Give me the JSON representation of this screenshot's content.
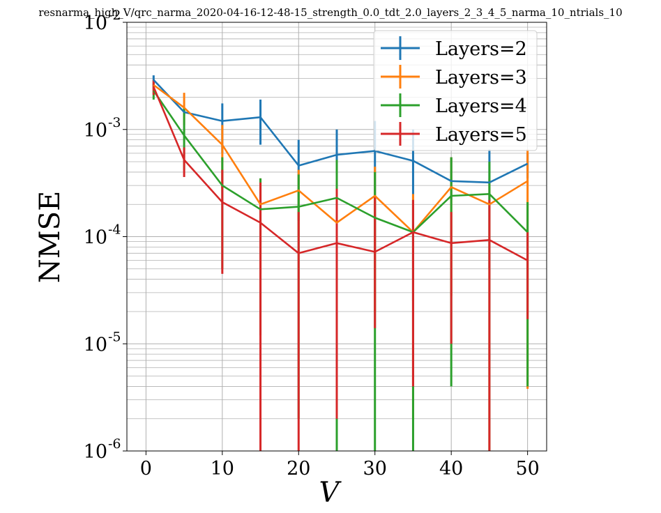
{
  "chart_data": {
    "type": "line",
    "title": "resnarma_high_V/qrc_narma_2020-04-16-12-48-15_strength_0.0_tdt_2.0_layers_2_3_4_5_narma_10_ntrials_10",
    "xlabel": "V",
    "ylabel": "NMSE",
    "x_scale": "linear",
    "y_scale": "log",
    "xlim": [
      -2.5,
      52.5
    ],
    "ylim": [
      1e-06,
      0.01
    ],
    "grid": true,
    "legend_position": "top-right",
    "x_ticks": [
      0,
      10,
      20,
      30,
      40,
      50
    ],
    "y_ticks": [
      {
        "value": 1e-06,
        "base": "10",
        "exp": "-6"
      },
      {
        "value": 1e-05,
        "base": "10",
        "exp": "-5"
      },
      {
        "value": 0.0001,
        "base": "10",
        "exp": "-4"
      },
      {
        "value": 0.001,
        "base": "10",
        "exp": "-3"
      },
      {
        "value": 0.01,
        "base": "10",
        "exp": "-2"
      }
    ],
    "x": [
      1,
      5,
      10,
      15,
      20,
      25,
      30,
      35,
      40,
      45,
      50
    ],
    "series": [
      {
        "name": "Layers=2",
        "color": "#1f77b4",
        "values": [
          0.0029,
          0.00145,
          0.0012,
          0.0013,
          0.00046,
          0.00058,
          0.00063,
          0.00051,
          0.00033,
          0.00032,
          0.00048
        ],
        "err_low": [
          0.0026,
          0.00135,
          0.0006,
          0.00072,
          0.00014,
          0.00015,
          0.0001,
          2.5e-05,
          0.00022,
          5e-05,
          0.00035
        ],
        "err_high": [
          0.0032,
          0.00155,
          0.00175,
          0.0019,
          0.0008,
          0.001,
          0.0012,
          0.001,
          0.00055,
          0.00065,
          0.0006
        ]
      },
      {
        "name": "Layers=3",
        "color": "#ff7f0e",
        "values": [
          0.0026,
          0.0016,
          0.00072,
          0.0002,
          0.00027,
          0.000135,
          0.00024,
          0.00011,
          0.00029,
          0.0002,
          0.00033
        ],
        "err_low": [
          0.0024,
          0.0011,
          0.00028,
          4.5e-05,
          0.0001,
          2e-06,
          2e-05,
          2e-06,
          2.8e-05,
          1e-06,
          3.8e-06
        ],
        "err_high": [
          0.0028,
          0.0022,
          0.0011,
          0.00035,
          0.00042,
          0.00028,
          0.00045,
          0.00025,
          0.00055,
          0.00035,
          0.00065
        ]
      },
      {
        "name": "Layers=4",
        "color": "#2ca02c",
        "values": [
          0.0023,
          0.00088,
          0.0003,
          0.00018,
          0.00019,
          0.00023,
          0.00015,
          0.00011,
          0.00024,
          0.00025,
          0.00011
        ],
        "err_low": [
          0.0019,
          0.00042,
          5e-05,
          1.2e-05,
          2e-06,
          1e-06,
          1e-06,
          1e-06,
          4e-06,
          1e-06,
          4e-06
        ],
        "err_high": [
          0.0027,
          0.0016,
          0.00055,
          0.00035,
          0.00038,
          0.00052,
          0.0004,
          0.00022,
          0.00055,
          0.0005,
          0.00021
        ]
      },
      {
        "name": "Layers=5",
        "color": "#d62728",
        "values": [
          0.0025,
          0.00052,
          0.00021,
          0.000135,
          7e-05,
          8.7e-05,
          7.2e-05,
          0.00011,
          8.7e-05,
          9.3e-05,
          6e-05
        ],
        "err_low": [
          0.0021,
          0.00036,
          4.5e-05,
          1e-06,
          1e-06,
          2e-06,
          1.4e-05,
          4e-06,
          1e-05,
          1e-06,
          1.7e-05
        ],
        "err_high": [
          0.0029,
          0.00068,
          0.00042,
          0.00032,
          0.00017,
          0.00028,
          0.00024,
          0.00022,
          0.00017,
          0.00022,
          0.00011
        ]
      }
    ]
  }
}
